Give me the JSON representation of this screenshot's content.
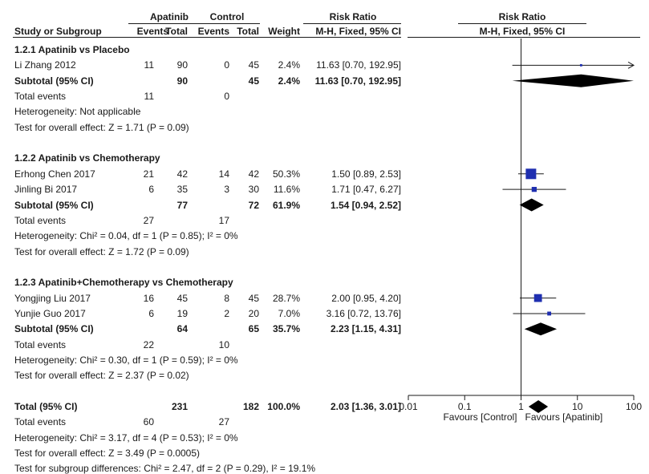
{
  "chart_data": {
    "type": "forest",
    "header": {
      "group_exp": "Apatinib",
      "group_ctl": "Control",
      "study": "Study or Subgroup",
      "events_exp": "Events",
      "total_exp": "Total",
      "events_ctl": "Events",
      "total_ctl": "Total",
      "weight": "Weight",
      "rr_title": "Risk Ratio",
      "rr_method": "M-H, Fixed, 95% CI",
      "plot_title": "Risk Ratio",
      "plot_method": "M-H, Fixed, 95% CI"
    },
    "axis": {
      "scale": "log",
      "ticks": [
        0.01,
        0.1,
        1,
        10,
        100
      ],
      "tick_labels": [
        "0.01",
        "0.1",
        "1",
        "10",
        "100"
      ],
      "null_line": 1,
      "label_left": "Favours [Control]",
      "label_right": "Favours [Apatinib]"
    },
    "rows": [
      {
        "type": "group",
        "label": "1.2.1 Apatinib vs Placebo"
      },
      {
        "type": "study",
        "label": "Li Zhang 2012",
        "e1": "11",
        "n1": "90",
        "e2": "0",
        "n2": "45",
        "weight": "2.4%",
        "ci_text": "11.63 [0.70, 192.95]",
        "rr": 11.63,
        "lo": 0.7,
        "hi": 192.95,
        "w": 2.4
      },
      {
        "type": "subtotal",
        "label": "Subtotal (95% CI)",
        "n1": "90",
        "n2": "45",
        "weight": "2.4%",
        "ci_text": "11.63 [0.70, 192.95]",
        "rr": 11.63,
        "lo": 0.7,
        "hi": 192.95
      },
      {
        "type": "events",
        "label": "Total events",
        "e1": "11",
        "e2": "0"
      },
      {
        "type": "text",
        "label": "Heterogeneity: Not applicable"
      },
      {
        "type": "text",
        "label": "Test for overall effect: Z = 1.71 (P = 0.09)"
      },
      {
        "type": "blank"
      },
      {
        "type": "group",
        "label": "1.2.2 Apatinib vs Chemotherapy"
      },
      {
        "type": "study",
        "label": "Erhong Chen 2017",
        "e1": "21",
        "n1": "42",
        "e2": "14",
        "n2": "42",
        "weight": "50.3%",
        "ci_text": "1.50 [0.89, 2.53]",
        "rr": 1.5,
        "lo": 0.89,
        "hi": 2.53,
        "w": 50.3
      },
      {
        "type": "study",
        "label": "Jinling Bi 2017",
        "e1": "6",
        "n1": "35",
        "e2": "3",
        "n2": "30",
        "weight": "11.6%",
        "ci_text": "1.71 [0.47, 6.27]",
        "rr": 1.71,
        "lo": 0.47,
        "hi": 6.27,
        "w": 11.6
      },
      {
        "type": "subtotal",
        "label": "Subtotal (95% CI)",
        "n1": "77",
        "n2": "72",
        "weight": "61.9%",
        "ci_text": "1.54 [0.94, 2.52]",
        "rr": 1.54,
        "lo": 0.94,
        "hi": 2.52
      },
      {
        "type": "events",
        "label": "Total events",
        "e1": "27",
        "e2": "17"
      },
      {
        "type": "text",
        "label": "Heterogeneity: Chi² = 0.04, df = 1 (P = 0.85); I² = 0%"
      },
      {
        "type": "text",
        "label": "Test for overall effect: Z = 1.72 (P = 0.09)"
      },
      {
        "type": "blank"
      },
      {
        "type": "group",
        "label": "1.2.3 Apatinib+Chemotherapy vs Chemotherapy"
      },
      {
        "type": "study",
        "label": "Yongjing Liu 2017",
        "e1": "16",
        "n1": "45",
        "e2": "8",
        "n2": "45",
        "weight": "28.7%",
        "ci_text": "2.00 [0.95, 4.20]",
        "rr": 2.0,
        "lo": 0.95,
        "hi": 4.2,
        "w": 28.7
      },
      {
        "type": "study",
        "label": "Yunjie Guo 2017",
        "e1": "6",
        "n1": "19",
        "e2": "2",
        "n2": "20",
        "weight": "7.0%",
        "ci_text": "3.16 [0.72, 13.76]",
        "rr": 3.16,
        "lo": 0.72,
        "hi": 13.76,
        "w": 7.0
      },
      {
        "type": "subtotal",
        "label": "Subtotal (95% CI)",
        "n1": "64",
        "n2": "65",
        "weight": "35.7%",
        "ci_text": "2.23 [1.15, 4.31]",
        "rr": 2.23,
        "lo": 1.15,
        "hi": 4.31
      },
      {
        "type": "events",
        "label": "Total events",
        "e1": "22",
        "e2": "10"
      },
      {
        "type": "text",
        "label": "Heterogeneity: Chi² = 0.30, df = 1 (P = 0.59); I² = 0%"
      },
      {
        "type": "text",
        "label": "Test for overall effect: Z = 2.37 (P = 0.02)"
      },
      {
        "type": "blank"
      },
      {
        "type": "total",
        "label": "Total (95% CI)",
        "n1": "231",
        "n2": "182",
        "weight": "100.0%",
        "ci_text": "2.03 [1.36, 3.01]",
        "rr": 2.03,
        "lo": 1.36,
        "hi": 3.01
      },
      {
        "type": "events",
        "label": "Total events",
        "e1": "60",
        "e2": "27"
      },
      {
        "type": "text",
        "label": "Heterogeneity: Chi² = 3.17, df = 4 (P = 0.53); I² = 0%"
      },
      {
        "type": "text",
        "label": "Test for overall effect: Z = 3.49 (P = 0.0005)"
      },
      {
        "type": "text",
        "label": "Test for subgroup differences: Chi² = 2.47, df = 2 (P = 0.29), I² = 19.1%"
      }
    ]
  },
  "colors": {
    "text": "#1a1a1a",
    "square": "#1f2fb0",
    "diamond": "#000000",
    "line": "#1a1a1a"
  }
}
